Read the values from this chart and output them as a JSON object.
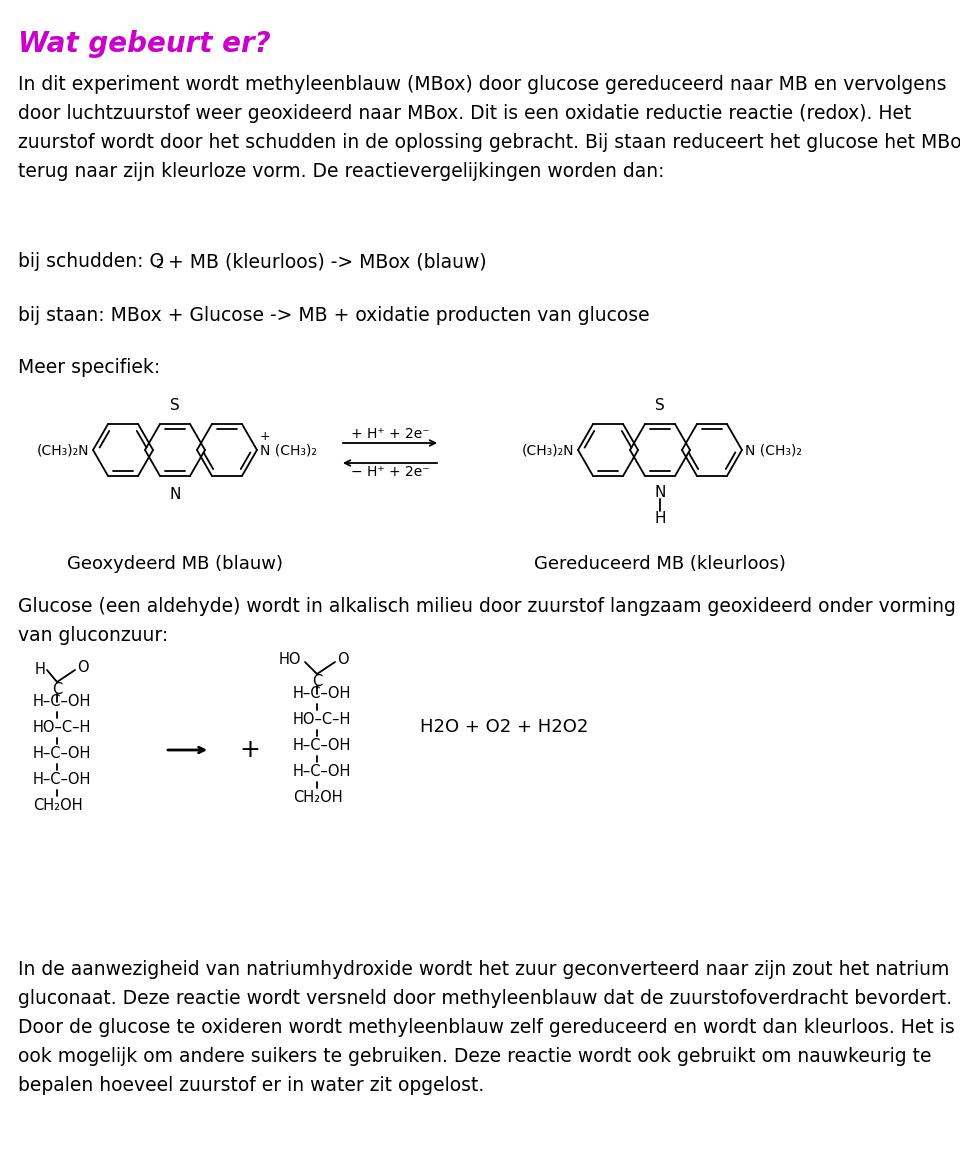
{
  "title": "Wat gebeurt er?",
  "title_color": "#cc00cc",
  "bg_color": "#ffffff",
  "text_color": "#000000",
  "body_font_size": 13.5,
  "para1_lines": [
    "In dit experiment wordt methyleenblauw (MBox) door glucose gereduceerd naar MB en vervolgens",
    "door luchtzuurstof weer geoxideerd naar MBox. Dit is een oxidatie reductie reactie (redox). Het",
    "zuurstof wordt door het schudden in de oplossing gebracht. Bij staan reduceert het glucose het MBox",
    "terug naar zijn kleurloze vorm. De reactievergelijkingen worden dan:"
  ],
  "line_staan": "bij staan: MBox + Glucose -> MB + oxidatie producten van glucose",
  "line_meer": "Meer specifiek:",
  "label_geo": "Geoxydeerd MB (blauw)",
  "label_gered": "Gereduceerd MB (kleurloos)",
  "para_glucose_lines": [
    "Glucose (een aldehyde) wordt in alkalisch milieu door zuurstof langzaam geoxideerd onder vorming",
    "van gluconzuur:"
  ],
  "final_lines": [
    "In de aanwezigheid van natriumhydroxide wordt het zuur geconverteerd naar zijn zout het natrium",
    "gluconaat. Deze reactie wordt versneld door methyleenblauw dat de zuurstofoverdracht bevordert.",
    "Door de glucose te oxideren wordt methyleenblauw zelf gereduceerd en wordt dan kleurloos. Het is",
    "ook mogelijk om andere suikers te gebruiken. Deze reactie wordt ook gebruikt om nauwkeurig te",
    "bepalen hoeveel zuurstof er in water zit opgelost."
  ]
}
